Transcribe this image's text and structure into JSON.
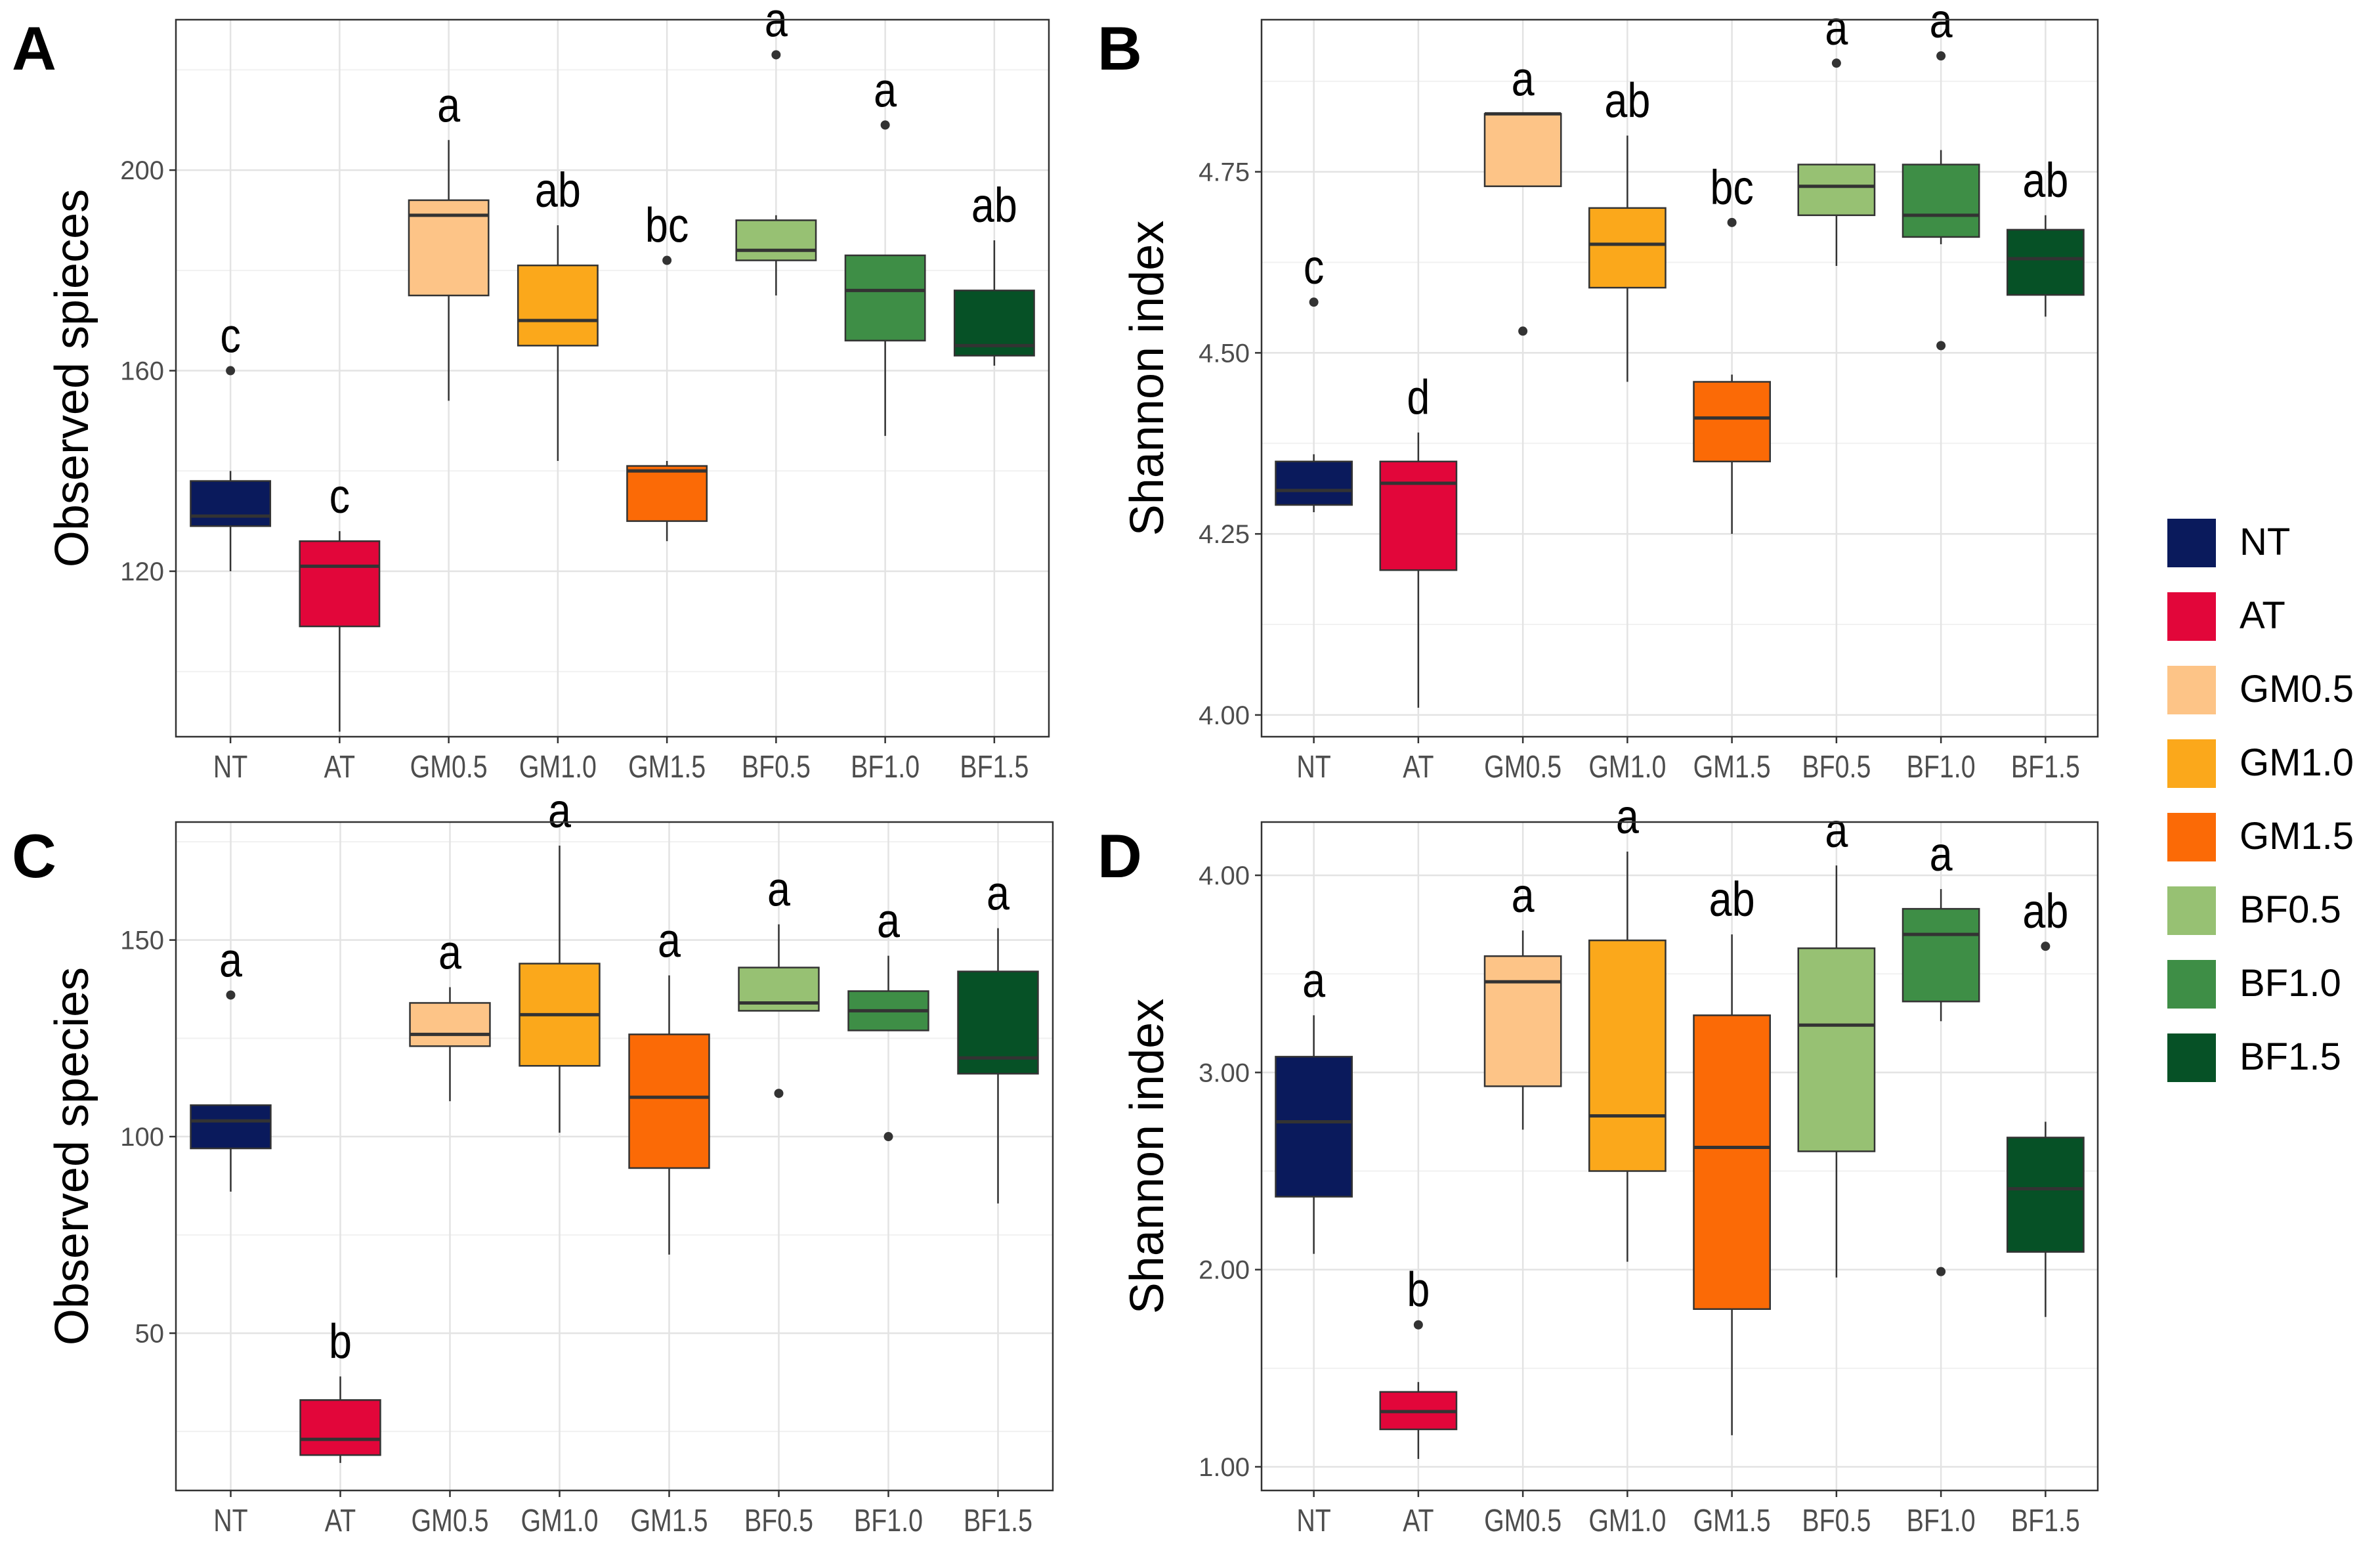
{
  "legend": {
    "items": [
      {
        "label": "NT",
        "color": "#0A1A5C"
      },
      {
        "label": "AT",
        "color": "#E2063A"
      },
      {
        "label": "GM0.5",
        "color": "#FDC487"
      },
      {
        "label": "GM1.0",
        "color": "#FBA81B"
      },
      {
        "label": "GM1.5",
        "color": "#FB6A06"
      },
      {
        "label": "BF0.5",
        "color": "#97C173"
      },
      {
        "label": "BF1.0",
        "color": "#3E8E46"
      },
      {
        "label": "BF1.5",
        "color": "#065126"
      }
    ]
  },
  "chart_data": [
    {
      "type": "boxplot",
      "panel": "A",
      "title": "",
      "xlabel": "",
      "ylabel": "Observed spieces",
      "categories": [
        "NT",
        "AT",
        "GM0.5",
        "GM1.0",
        "GM1.5",
        "BF0.5",
        "BF1.0",
        "BF1.5"
      ],
      "yticks": [
        120,
        160,
        200
      ],
      "ytick_labels": [
        "120",
        "160",
        "200"
      ],
      "ylim": [
        87,
        230
      ],
      "grid": true,
      "boxes": [
        {
          "group": "NT",
          "whisker_low": 120,
          "q1": 129,
          "median": 131,
          "q3": 138,
          "whisker_high": 140,
          "outliers": [
            160
          ],
          "letter": "c"
        },
        {
          "group": "AT",
          "whisker_low": 88,
          "q1": 109,
          "median": 121,
          "q3": 126,
          "whisker_high": 128,
          "outliers": [],
          "letter": "c"
        },
        {
          "group": "GM0.5",
          "whisker_low": 154,
          "q1": 175,
          "median": 191,
          "q3": 194,
          "whisker_high": 206,
          "outliers": [],
          "letter": "a"
        },
        {
          "group": "GM1.0",
          "whisker_low": 142,
          "q1": 165,
          "median": 170,
          "q3": 181,
          "whisker_high": 189,
          "outliers": [],
          "letter": "ab"
        },
        {
          "group": "GM1.5",
          "whisker_low": 126,
          "q1": 130,
          "median": 140,
          "q3": 141,
          "whisker_high": 142,
          "outliers": [
            182
          ],
          "letter": "bc"
        },
        {
          "group": "BF0.5",
          "whisker_low": 175,
          "q1": 182,
          "median": 184,
          "q3": 190,
          "whisker_high": 191,
          "outliers": [
            223
          ],
          "letter": "a"
        },
        {
          "group": "BF1.0",
          "whisker_low": 147,
          "q1": 166,
          "median": 176,
          "q3": 183,
          "whisker_high": 183,
          "outliers": [
            209
          ],
          "letter": "a"
        },
        {
          "group": "BF1.5",
          "whisker_low": 161,
          "q1": 163,
          "median": 165,
          "q3": 176,
          "whisker_high": 186,
          "outliers": [],
          "letter": "ab"
        }
      ]
    },
    {
      "type": "boxplot",
      "panel": "B",
      "title": "",
      "xlabel": "",
      "ylabel": "Shannon index",
      "categories": [
        "NT",
        "AT",
        "GM0.5",
        "GM1.0",
        "GM1.5",
        "BF0.5",
        "BF1.0",
        "BF1.5"
      ],
      "yticks": [
        4.0,
        4.25,
        4.5,
        4.75
      ],
      "ytick_labels": [
        "4.00",
        "4.25",
        "4.50",
        "4.75"
      ],
      "ylim": [
        3.97,
        4.96
      ],
      "grid": true,
      "boxes": [
        {
          "group": "NT",
          "whisker_low": 4.28,
          "q1": 4.29,
          "median": 4.31,
          "q3": 4.35,
          "whisker_high": 4.36,
          "outliers": [
            4.57
          ],
          "letter": "c"
        },
        {
          "group": "AT",
          "whisker_low": 4.01,
          "q1": 4.2,
          "median": 4.32,
          "q3": 4.35,
          "whisker_high": 4.39,
          "outliers": [],
          "letter": "d"
        },
        {
          "group": "GM0.5",
          "whisker_low": 4.73,
          "q1": 4.73,
          "median": 4.83,
          "q3": 4.83,
          "whisker_high": 4.83,
          "outliers": [
            4.53
          ],
          "letter": "a"
        },
        {
          "group": "GM1.0",
          "whisker_low": 4.46,
          "q1": 4.59,
          "median": 4.65,
          "q3": 4.7,
          "whisker_high": 4.8,
          "outliers": [],
          "letter": "ab"
        },
        {
          "group": "GM1.5",
          "whisker_low": 4.25,
          "q1": 4.35,
          "median": 4.41,
          "q3": 4.46,
          "whisker_high": 4.47,
          "outliers": [
            4.68
          ],
          "letter": "bc"
        },
        {
          "group": "BF0.5",
          "whisker_low": 4.62,
          "q1": 4.69,
          "median": 4.73,
          "q3": 4.76,
          "whisker_high": 4.76,
          "outliers": [
            4.9
          ],
          "letter": "a"
        },
        {
          "group": "BF1.0",
          "whisker_low": 4.65,
          "q1": 4.66,
          "median": 4.69,
          "q3": 4.76,
          "whisker_high": 4.78,
          "outliers": [
            4.91,
            4.51
          ],
          "letter": "a"
        },
        {
          "group": "BF1.5",
          "whisker_low": 4.55,
          "q1": 4.58,
          "median": 4.63,
          "q3": 4.67,
          "whisker_high": 4.69,
          "outliers": [],
          "letter": "ab"
        }
      ]
    },
    {
      "type": "boxplot",
      "panel": "C",
      "title": "",
      "xlabel": "",
      "ylabel": "Observed species",
      "categories": [
        "NT",
        "AT",
        "GM0.5",
        "GM1.0",
        "GM1.5",
        "BF0.5",
        "BF1.0",
        "BF1.5"
      ],
      "yticks": [
        50,
        100,
        150
      ],
      "ytick_labels": [
        "50",
        "100",
        "150"
      ],
      "ylim": [
        10,
        180
      ],
      "grid": true,
      "boxes": [
        {
          "group": "NT",
          "whisker_low": 86,
          "q1": 97,
          "median": 104,
          "q3": 108,
          "whisker_high": 108,
          "outliers": [
            136
          ],
          "letter": "a"
        },
        {
          "group": "AT",
          "whisker_low": 17,
          "q1": 19,
          "median": 23,
          "q3": 33,
          "whisker_high": 39,
          "outliers": [],
          "letter": "b"
        },
        {
          "group": "GM0.5",
          "whisker_low": 109,
          "q1": 123,
          "median": 126,
          "q3": 134,
          "whisker_high": 138,
          "outliers": [],
          "letter": "a"
        },
        {
          "group": "GM1.0",
          "whisker_low": 101,
          "q1": 118,
          "median": 131,
          "q3": 144,
          "whisker_high": 174,
          "outliers": [],
          "letter": "a"
        },
        {
          "group": "GM1.5",
          "whisker_low": 70,
          "q1": 92,
          "median": 110,
          "q3": 126,
          "whisker_high": 141,
          "outliers": [],
          "letter": "a"
        },
        {
          "group": "BF0.5",
          "whisker_low": 132,
          "q1": 132,
          "median": 134,
          "q3": 143,
          "whisker_high": 154,
          "outliers": [
            111
          ],
          "letter": "a"
        },
        {
          "group": "BF1.0",
          "whisker_low": 127,
          "q1": 127,
          "median": 132,
          "q3": 137,
          "whisker_high": 146,
          "outliers": [
            100
          ],
          "letter": "a"
        },
        {
          "group": "BF1.5",
          "whisker_low": 83,
          "q1": 116,
          "median": 120,
          "q3": 142,
          "whisker_high": 153,
          "outliers": [],
          "letter": "a"
        }
      ]
    },
    {
      "type": "boxplot",
      "panel": "D",
      "title": "",
      "xlabel": "",
      "ylabel": "Shannon index",
      "categories": [
        "NT",
        "AT",
        "GM0.5",
        "GM1.0",
        "GM1.5",
        "BF0.5",
        "BF1.0",
        "BF1.5"
      ],
      "yticks": [
        1.0,
        2.0,
        3.0,
        4.0
      ],
      "ytick_labels": [
        "1.00",
        "2.00",
        "3.00",
        "4.00"
      ],
      "ylim": [
        0.88,
        4.27
      ],
      "grid": true,
      "boxes": [
        {
          "group": "NT",
          "whisker_low": 2.08,
          "q1": 2.37,
          "median": 2.75,
          "q3": 3.08,
          "whisker_high": 3.29,
          "outliers": [],
          "letter": "a"
        },
        {
          "group": "AT",
          "whisker_low": 1.04,
          "q1": 1.19,
          "median": 1.28,
          "q3": 1.38,
          "whisker_high": 1.43,
          "outliers": [
            1.72
          ],
          "letter": "b"
        },
        {
          "group": "GM0.5",
          "whisker_low": 2.71,
          "q1": 2.93,
          "median": 3.46,
          "q3": 3.59,
          "whisker_high": 3.72,
          "outliers": [],
          "letter": "a"
        },
        {
          "group": "GM1.0",
          "whisker_low": 2.04,
          "q1": 2.5,
          "median": 2.78,
          "q3": 3.67,
          "whisker_high": 4.12,
          "outliers": [],
          "letter": "a"
        },
        {
          "group": "GM1.5",
          "whisker_low": 1.16,
          "q1": 1.8,
          "median": 2.62,
          "q3": 3.29,
          "whisker_high": 3.7,
          "outliers": [],
          "letter": "ab"
        },
        {
          "group": "BF0.5",
          "whisker_low": 1.96,
          "q1": 2.6,
          "median": 3.24,
          "q3": 3.63,
          "whisker_high": 4.05,
          "outliers": [],
          "letter": "a"
        },
        {
          "group": "BF1.0",
          "whisker_low": 3.26,
          "q1": 3.36,
          "median": 3.7,
          "q3": 3.83,
          "whisker_high": 3.93,
          "outliers": [
            1.99
          ],
          "letter": "a"
        },
        {
          "group": "BF1.5",
          "whisker_low": 1.76,
          "q1": 2.09,
          "median": 2.41,
          "q3": 2.67,
          "whisker_high": 2.75,
          "outliers": [
            3.64
          ],
          "letter": "ab"
        }
      ]
    }
  ]
}
